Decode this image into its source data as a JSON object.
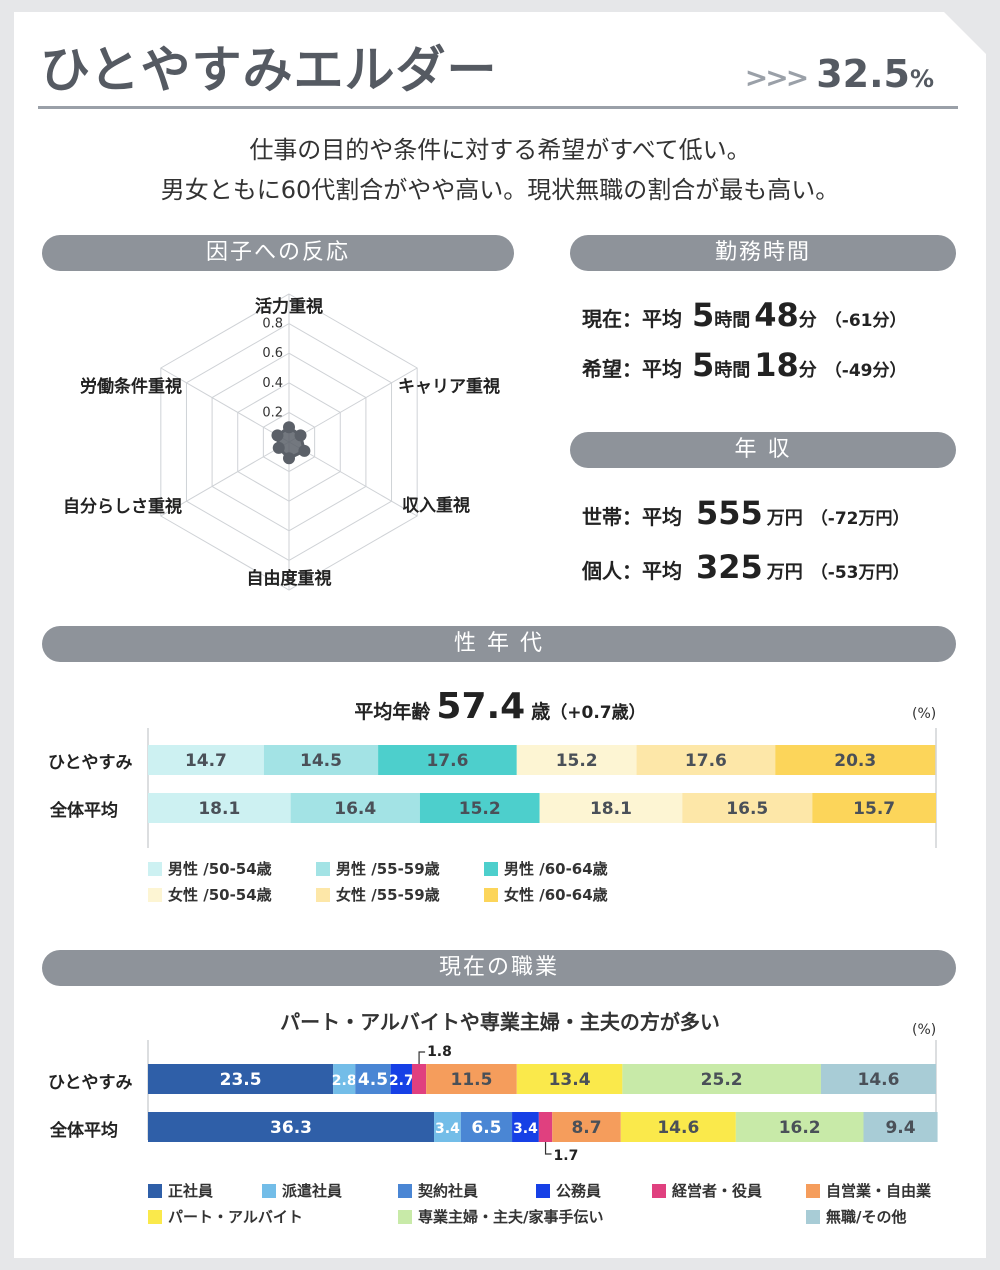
{
  "header": {
    "title": "ひとやすみエルダー",
    "arrows": ">>>",
    "rate": "32.5",
    "rate_unit": "%"
  },
  "description": [
    "仕事の目的や条件に対する希望がすべて低い。",
    "男女ともに60代割合がやや高い。現状無職の割合が最も高い。"
  ],
  "sections": {
    "factor": "因子への反応",
    "work_hours": "勤務時間",
    "income": "年 収",
    "age": "性 年 代",
    "job": "現在の職業"
  },
  "work_hours": {
    "current": {
      "label": "現在：",
      "avg": "平均",
      "hours": "5",
      "hour_unit": "時間",
      "minutes": "48",
      "minute_unit": "分",
      "diff": "（-61分）"
    },
    "desired": {
      "label": "希望：",
      "avg": "平均",
      "hours": "5",
      "hour_unit": "時間",
      "minutes": "18",
      "minute_unit": "分",
      "diff": "（-49分）"
    }
  },
  "income": {
    "household": {
      "label": "世帯：",
      "avg": "平均",
      "value": "555",
      "unit": "万円",
      "diff": "（-72万円）"
    },
    "personal": {
      "label": "個人：",
      "avg": "平均",
      "value": "325",
      "unit": "万円",
      "diff": "（-53万円）"
    }
  },
  "age_info": {
    "label": "平均年齢",
    "value": "57.4",
    "unit": "歳",
    "diff": "（+0.7歳）"
  },
  "unit_label": "(%)",
  "job_subtitle": "パート・アルバイトや専業主婦・主夫の方が多い",
  "chart_data": [
    {
      "type": "radar",
      "axes": [
        "活力重視",
        "キャリア重視",
        "収入重視",
        "自由度重視",
        "自分らしさ重視",
        "労働条件重視"
      ],
      "ticks": [
        "0.2",
        "0.4",
        "0.6",
        "0.8"
      ],
      "range": [
        0,
        1.0
      ],
      "values": [
        0.04,
        0.03,
        0.06,
        0.05,
        0.02,
        0.03
      ]
    },
    {
      "type": "bar",
      "stacked": true,
      "orientation": "horizontal",
      "categories": [
        "ひとやすみ",
        "全体平均"
      ],
      "series": [
        {
          "name": "男性 /50-54歳",
          "color": "#cdf1f2",
          "values": [
            14.7,
            18.1
          ]
        },
        {
          "name": "男性 /55-59歳",
          "color": "#a3e3e5",
          "values": [
            14.5,
            16.4
          ]
        },
        {
          "name": "男性 /60-64歳",
          "color": "#4dcfcc",
          "values": [
            17.6,
            15.2
          ]
        },
        {
          "name": "女性 /50-54歳",
          "color": "#fdf5d3",
          "values": [
            15.2,
            18.1
          ]
        },
        {
          "name": "女性 /55-59歳",
          "color": "#fde7a8",
          "values": [
            17.6,
            16.5
          ]
        },
        {
          "name": "女性 /60-64歳",
          "color": "#fcd55a",
          "values": [
            20.3,
            15.7
          ]
        }
      ],
      "unit": "(%)"
    },
    {
      "type": "bar",
      "stacked": true,
      "orientation": "horizontal",
      "title": "パート・アルバイトや専業主婦・主夫の方が多い",
      "categories": [
        "ひとやすみ",
        "全体平均"
      ],
      "series": [
        {
          "name": "正社員",
          "color": "#2f5fa8",
          "values": [
            23.5,
            36.3
          ]
        },
        {
          "name": "派遣社員",
          "color": "#73bde8",
          "values": [
            2.8,
            3.4
          ]
        },
        {
          "name": "契約社員",
          "color": "#4a86d4",
          "values": [
            4.5,
            6.5
          ]
        },
        {
          "name": "公務員",
          "color": "#1640e6",
          "values": [
            2.7,
            3.4
          ]
        },
        {
          "name": "経営者・役員",
          "color": "#e0407f",
          "values": [
            1.8,
            1.7
          ]
        },
        {
          "name": "自営業・自由業",
          "color": "#f59d5c",
          "values": [
            11.5,
            8.7
          ]
        },
        {
          "name": "パート・アルバイト",
          "color": "#fae94b",
          "values": [
            13.4,
            14.6
          ]
        },
        {
          "name": "専業主婦・主夫/家事手伝い",
          "color": "#c8eaa8",
          "values": [
            25.2,
            16.2
          ]
        },
        {
          "name": "無職/その他",
          "color": "#a8ccd6",
          "values": [
            14.6,
            9.4
          ]
        }
      ],
      "unit": "(%)"
    }
  ]
}
